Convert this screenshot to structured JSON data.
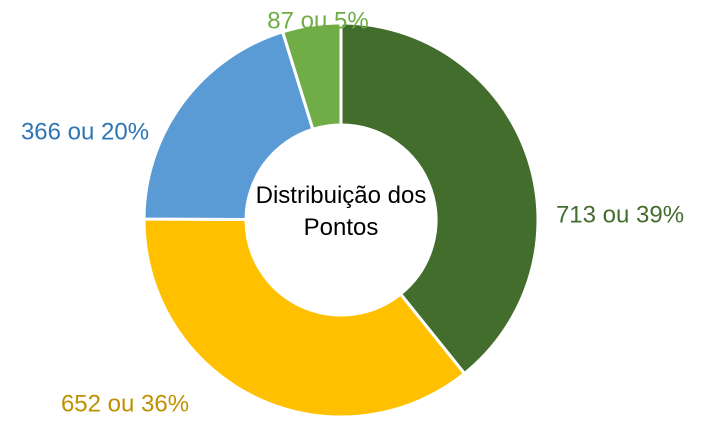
{
  "chart_data": {
    "type": "donut",
    "title": "Distribuição dos Pontos",
    "values": [
      713,
      652,
      366,
      87
    ],
    "value_labels": [
      "713 ou 39%",
      "652 ou 36%",
      "366 ou 20%",
      "87 ou 5%"
    ],
    "colors": [
      "#436d2d",
      "#ffc000",
      "#5b9bd5",
      "#70ad47"
    ],
    "label_colors": [
      "#436d2d",
      "#bf9000",
      "#2e75b6",
      "#70ad47"
    ]
  }
}
